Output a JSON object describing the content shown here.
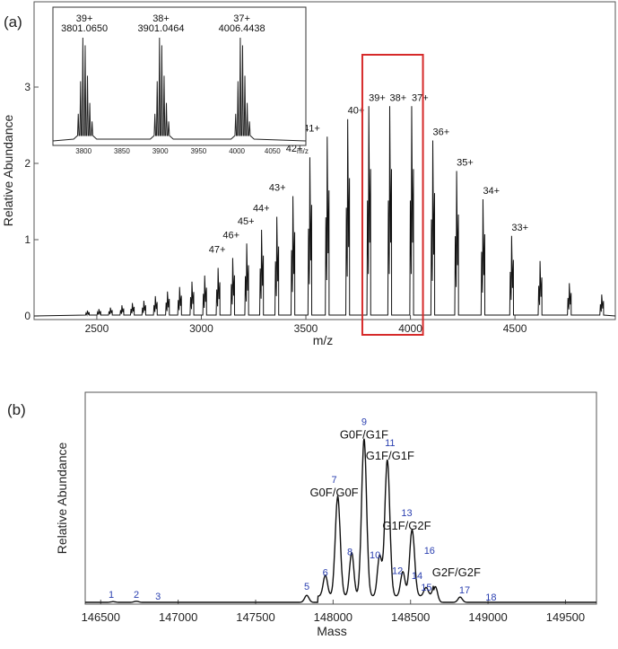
{
  "chart_data": [
    {
      "panel_label": "(a)",
      "type": "line",
      "xlabel": "m/z",
      "ylabel": "Relative Abundance",
      "xlim": [
        2200,
        4980
      ],
      "ylim": [
        0,
        4
      ],
      "xticks": [
        2500,
        3000,
        3500,
        4000,
        4500
      ],
      "yticks": [
        0,
        1,
        2,
        3
      ],
      "peaks": [
        {
          "mz": 2455,
          "height": 0.07
        },
        {
          "mz": 2510,
          "height": 0.09
        },
        {
          "mz": 2565,
          "height": 0.11
        },
        {
          "mz": 2620,
          "height": 0.14
        },
        {
          "mz": 2670,
          "height": 0.17
        },
        {
          "mz": 2725,
          "height": 0.2
        },
        {
          "mz": 2780,
          "height": 0.26
        },
        {
          "mz": 2838,
          "height": 0.32
        },
        {
          "mz": 2896,
          "height": 0.38
        },
        {
          "mz": 2955,
          "height": 0.45
        },
        {
          "mz": 3016,
          "height": 0.53
        },
        {
          "mz": 3080,
          "height": 0.63
        },
        {
          "mz": 3150,
          "height": 0.76,
          "charge": "47+"
        },
        {
          "mz": 3217,
          "height": 0.95,
          "charge": "46+"
        },
        {
          "mz": 3288,
          "height": 1.13,
          "charge": "45+"
        },
        {
          "mz": 3361,
          "height": 1.3,
          "charge": "44+"
        },
        {
          "mz": 3438,
          "height": 1.57,
          "charge": "43+"
        },
        {
          "mz": 3519,
          "height": 2.08,
          "charge": "42+"
        },
        {
          "mz": 3602,
          "height": 2.35,
          "charge": "41+"
        },
        {
          "mz": 3700,
          "height": 2.58,
          "charge": "40+"
        },
        {
          "mz": 3801,
          "height": 2.75,
          "charge": "39+"
        },
        {
          "mz": 3901,
          "height": 2.75,
          "charge": "38+"
        },
        {
          "mz": 4006,
          "height": 2.75,
          "charge": "37+"
        },
        {
          "mz": 4107,
          "height": 2.3,
          "charge": "36+"
        },
        {
          "mz": 4221,
          "height": 1.9,
          "charge": "35+"
        },
        {
          "mz": 4347,
          "height": 1.53,
          "charge": "34+"
        },
        {
          "mz": 4484,
          "height": 1.05,
          "charge": "33+"
        },
        {
          "mz": 4620,
          "height": 0.72
        },
        {
          "mz": 4760,
          "height": 0.43
        },
        {
          "mz": 4915,
          "height": 0.28
        }
      ],
      "highlight_box_mz": [
        3770,
        4060
      ],
      "highlight_color": "#d62a2a",
      "inset": {
        "xlim": [
          3760,
          4090
        ],
        "xticks": [
          "3800",
          "3850",
          "3900",
          "3950",
          "4000",
          "4050"
        ],
        "xlabel": "m/z",
        "peaks": [
          {
            "mz": 3801.065,
            "charge": "39+",
            "mass": "3801.0650"
          },
          {
            "mz": 3901.0464,
            "charge": "38+",
            "mass": "3901.0464"
          },
          {
            "mz": 4006.4438,
            "charge": "37+",
            "mass": "4006.4438"
          }
        ]
      }
    },
    {
      "panel_label": "(b)",
      "type": "line",
      "xlabel": "Mass",
      "ylabel": "Relative Abundance",
      "xlim": [
        146400,
        149700
      ],
      "xticks": [
        146500,
        147000,
        147500,
        148000,
        148500,
        149000,
        149500
      ],
      "peaks": [
        {
          "id": "1",
          "mass": 146580,
          "height": 0.004
        },
        {
          "id": "2",
          "mass": 146730,
          "height": 0.006
        },
        {
          "id": "3",
          "mass": 146870,
          "height": 0.0
        },
        {
          "id": "5",
          "mass": 147830,
          "height": 0.04
        },
        {
          "id": "6",
          "mass": 147950,
          "height": 0.12
        },
        {
          "id": "7",
          "mass": 148030,
          "height": 0.57,
          "glycoform": "G0F/G0F"
        },
        {
          "id": "8",
          "mass": 148120,
          "height": 0.25
        },
        {
          "id": "9",
          "mass": 148200,
          "height": 0.9,
          "glycoform": "G0F/G1F"
        },
        {
          "id": "10",
          "mass": 148300,
          "height": 0.23
        },
        {
          "id": "11",
          "mass": 148350,
          "height": 0.78,
          "glycoform": "G1F/G1F"
        },
        {
          "id": "12",
          "mass": 148450,
          "height": 0.14
        },
        {
          "id": "13",
          "mass": 148510,
          "height": 0.38,
          "glycoform": "G1F/G2F"
        },
        {
          "id": "14",
          "mass": 148600,
          "height": 0.05
        },
        {
          "id": "15",
          "mass": 148660,
          "height": 0.09
        },
        {
          "id": "16",
          "mass": 148680,
          "height": 0.0,
          "glycoform": "G2F/G2F"
        },
        {
          "id": "17",
          "mass": 148820,
          "height": 0.03
        },
        {
          "id": "18",
          "mass": 148990,
          "height": 0.0
        }
      ]
    }
  ]
}
